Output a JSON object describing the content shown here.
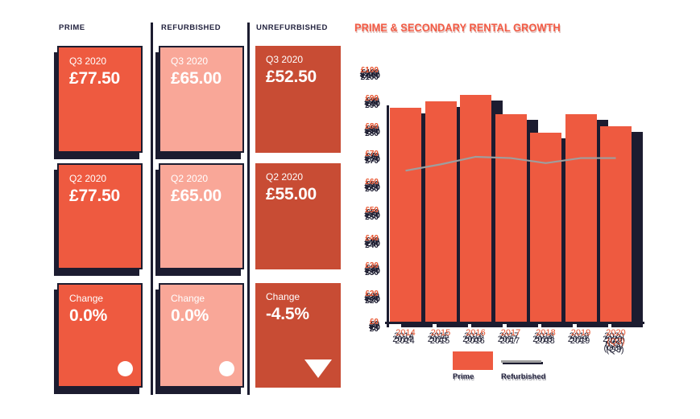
{
  "columns": [
    {
      "header": "PRIME",
      "cards": [
        {
          "label": "Q3 2020",
          "value": "£77.50"
        },
        {
          "label": "Q2 2020",
          "value": "£77.50"
        },
        {
          "label": "Change",
          "value": "0.0%",
          "indicator": "circle"
        }
      ]
    },
    {
      "header": "REFURBISHED",
      "cards": [
        {
          "label": "Q3 2020",
          "value": "£65.00"
        },
        {
          "label": "Q2 2020",
          "value": "£65.00"
        },
        {
          "label": "Change",
          "value": "0.0%",
          "indicator": "circle"
        }
      ]
    },
    {
      "header": "UNREFURBISHED",
      "cards": [
        {
          "label": "Q3 2020",
          "value": "£52.50"
        },
        {
          "label": "Q2 2020",
          "value": "£55.00"
        },
        {
          "label": "Change",
          "value": "-4.5%",
          "indicator": "triangle-down"
        }
      ]
    }
  ],
  "chart_data": {
    "type": "bar",
    "title": "PRIME & SECONDARY RENTAL GROWTH",
    "categories": [
      "2014",
      "2015",
      "2016",
      "2017",
      "2018",
      "2019",
      "2020 (Q3)"
    ],
    "series": [
      {
        "name": "Prime",
        "type": "bar",
        "color": "#ee5a40",
        "values": [
          85,
          87.5,
          90,
          82.5,
          75,
          82.5,
          77.5
        ]
      },
      {
        "name": "Refurbished",
        "type": "line",
        "color": "#9e9e9e",
        "values": [
          60,
          62.5,
          65.5,
          65,
          63,
          65,
          65
        ]
      }
    ],
    "ylabel_ticks": [
      "£100",
      "£90",
      "£80",
      "£70",
      "£60",
      "£50",
      "£40",
      "£30",
      "£20",
      "£0"
    ],
    "ylim": [
      0,
      100
    ],
    "legend": [
      "Prime",
      "Refurbished"
    ],
    "legend_position": "bottom"
  },
  "colors": {
    "prime": "#ee5a40",
    "refurbished": "#f9a798",
    "unrefurbished": "#c84c34",
    "navy": "#1c1c30",
    "title": "#f25b45",
    "line": "#9e9e9e"
  }
}
